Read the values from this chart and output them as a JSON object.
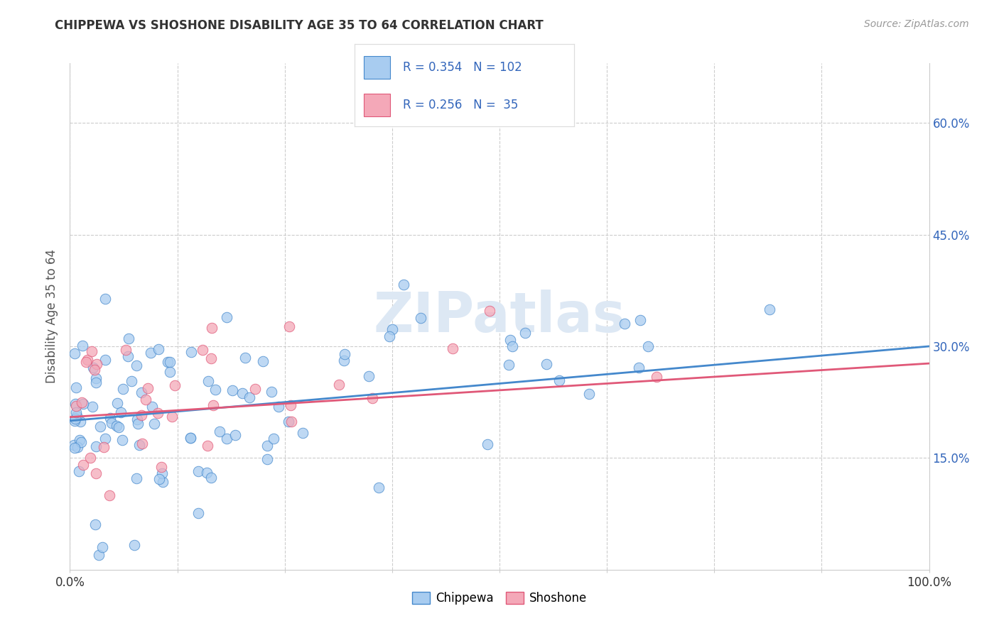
{
  "title": "CHIPPEWA VS SHOSHONE DISABILITY AGE 35 TO 64 CORRELATION CHART",
  "source": "Source: ZipAtlas.com",
  "ylabel": "Disability Age 35 to 64",
  "ytick_labels": [
    "15.0%",
    "30.0%",
    "45.0%",
    "60.0%"
  ],
  "ytick_values": [
    0.15,
    0.3,
    0.45,
    0.6
  ],
  "xlim": [
    0.0,
    1.0
  ],
  "ylim": [
    0.0,
    0.68
  ],
  "legend_label1": "Chippewa",
  "legend_label2": "Shoshone",
  "r1": 0.354,
  "n1": 102,
  "r2": 0.256,
  "n2": 35,
  "color_chippewa": "#A8CCF0",
  "color_shoshone": "#F4A8B8",
  "line_color_chippewa": "#4488CC",
  "line_color_shoshone": "#E05878",
  "text_color_blue": "#3366BB",
  "watermark_color": "#DDE8F4",
  "watermark": "ZIPatlas",
  "grid_color": "#CCCCCC",
  "spine_color": "#CCCCCC"
}
